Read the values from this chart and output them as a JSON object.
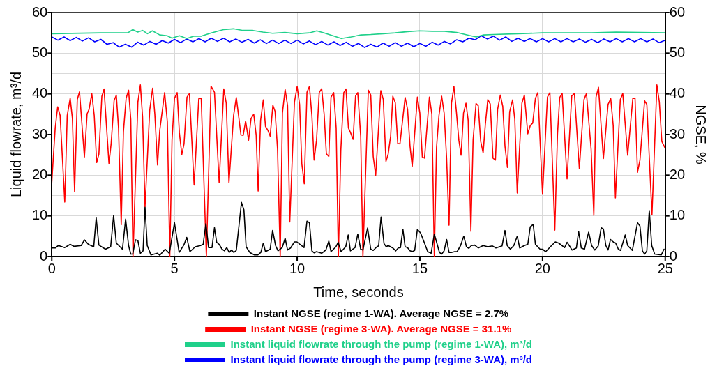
{
  "chart_data": {
    "type": "line",
    "xlabel": "Time, seconds",
    "ylabel": "Liquid flowrate, m³/d",
    "y2label": "NGSE, %",
    "xlim": [
      0,
      25
    ],
    "xticks": [
      0,
      5,
      10,
      15,
      20,
      25
    ],
    "ylim": [
      0,
      60
    ],
    "yticks": [
      0,
      {
        "value": 5,
        "label": null
      },
      10,
      {
        "value": 15,
        "label": null
      },
      20,
      {
        "value": 25,
        "label": null
      },
      30,
      {
        "value": 35,
        "label": null
      },
      40,
      {
        "value": 45,
        "label": null
      },
      50,
      {
        "value": 55,
        "label": null
      },
      60
    ],
    "y2lim": [
      0,
      60
    ],
    "y2ticks": [
      0,
      10,
      20,
      30,
      40,
      50,
      60
    ],
    "grid": true,
    "legend": "bottom",
    "marker": "none",
    "line_style": "solid",
    "series": [
      {
        "name": "Instant NGSE (regime 1-WA). Average NGSE = 2.7%",
        "color": "#000000",
        "x": [
          0,
          0.14,
          0.27,
          0.53,
          0.75,
          0.91,
          1.2,
          1.33,
          1.49,
          1.71,
          1.81,
          1.92,
          2.19,
          2.4,
          2.52,
          2.63,
          2.88,
          3.01,
          3.13,
          3.22,
          3.3,
          3.41,
          3.51,
          3.61,
          3.72,
          3.8,
          3.89,
          4.04,
          4.31,
          4.4,
          4.62,
          4.79,
          5.0,
          5.19,
          5.38,
          5.5,
          5.63,
          5.85,
          6.06,
          6.17,
          6.28,
          6.39,
          6.53,
          6.63,
          6.72,
          6.82,
          6.94,
          7.04,
          7.13,
          7.23,
          7.33,
          7.42,
          7.52,
          7.73,
          7.83,
          7.92,
          8.07,
          8.26,
          8.4,
          8.52,
          8.62,
          8.71,
          8.9,
          9.0,
          9.12,
          9.22,
          9.39,
          9.51,
          9.61,
          9.73,
          9.89,
          9.99,
          10.28,
          10.4,
          10.5,
          10.6,
          10.69,
          10.79,
          11.0,
          11.17,
          11.29,
          11.38,
          11.58,
          11.67,
          11.79,
          11.98,
          12.08,
          12.17,
          12.36,
          12.47,
          12.59,
          12.68,
          12.87,
          13.0,
          13.1,
          13.25,
          13.32,
          13.42,
          13.54,
          13.63,
          13.71,
          13.9,
          14.02,
          14.12,
          14.21,
          14.31,
          14.4,
          14.5,
          14.6,
          14.69,
          14.79,
          14.9,
          15.03,
          15.19,
          15.32,
          15.46,
          15.59,
          15.67,
          15.8,
          15.89,
          15.99,
          16.09,
          16.19,
          16.28,
          16.42,
          16.52,
          16.66,
          16.79,
          16.9,
          17.0,
          17.1,
          17.24,
          17.38,
          17.58,
          17.77,
          17.96,
          18.1,
          18.35,
          18.47,
          18.56,
          18.69,
          18.83,
          18.97,
          19.07,
          19.26,
          19.4,
          19.5,
          19.62,
          19.71,
          19.9,
          20.0,
          20.13,
          20.32,
          20.52,
          20.66,
          20.9,
          21.0,
          21.09,
          21.2,
          21.38,
          21.47,
          21.58,
          21.71,
          21.88,
          22.0,
          22.13,
          22.27,
          22.39,
          22.48,
          22.58,
          22.67,
          22.77,
          22.88,
          22.98,
          23.09,
          23.18,
          23.37,
          23.47,
          23.66,
          23.87,
          23.97,
          24.07,
          24.16,
          24.25,
          24.35,
          24.45,
          24.57,
          24.84,
          24.95
        ],
        "values": [
          2.1,
          2.1,
          2.7,
          2.2,
          3.0,
          2.5,
          2.7,
          4.1,
          3.0,
          2.4,
          9.5,
          2.8,
          1.8,
          2.4,
          10.1,
          3.3,
          1.8,
          9.2,
          2.7,
          0.6,
          0.6,
          4.1,
          3.9,
          0.8,
          1.4,
          12.1,
          2.7,
          0.4,
          0.8,
          0.3,
          1.8,
          0.8,
          8.3,
          1.0,
          2.8,
          4.7,
          1.2,
          2.4,
          2.7,
          3.0,
          8.1,
          2.2,
          2.2,
          7.1,
          3.5,
          3.0,
          1.8,
          1.4,
          2.2,
          1.0,
          1.6,
          1.0,
          1.5,
          13.3,
          11.5,
          2.4,
          1.0,
          0.4,
          0.4,
          1.0,
          3.3,
          1.2,
          1.8,
          6.4,
          2.7,
          1.4,
          2.2,
          4.5,
          1.6,
          2.1,
          3.6,
          3.6,
          2.2,
          8.7,
          8.3,
          1.4,
          0.9,
          1.2,
          0.8,
          1.6,
          3.8,
          1.2,
          2.4,
          3.5,
          1.2,
          2.4,
          5.3,
          1.4,
          2.2,
          5.5,
          1.8,
          1.6,
          7.0,
          1.8,
          1.5,
          2.4,
          2.6,
          9.7,
          3.2,
          2.4,
          2.7,
          2.1,
          1.4,
          2.1,
          2.2,
          6.7,
          2.4,
          2.2,
          1.4,
          1.2,
          1.5,
          6.7,
          5.8,
          3.3,
          1.2,
          0.8,
          5.5,
          3.8,
          1.0,
          0.6,
          1.4,
          4.2,
          1.0,
          1.0,
          1.2,
          1.2,
          2.7,
          5.0,
          2.4,
          2.0,
          2.7,
          2.8,
          2.1,
          2.7,
          2.4,
          2.6,
          2.1,
          2.6,
          6.4,
          2.7,
          1.8,
          2.7,
          5.0,
          2.1,
          2.7,
          3.0,
          7.3,
          7.9,
          3.0,
          1.8,
          1.8,
          1.2,
          2.4,
          3.6,
          3.3,
          2.2,
          3.5,
          2.7,
          1.6,
          2.1,
          6.2,
          2.1,
          1.8,
          6.0,
          2.7,
          1.6,
          2.6,
          7.1,
          6.8,
          2.7,
          1.6,
          4.2,
          3.6,
          3.3,
          1.8,
          1.5,
          5.3,
          2.7,
          1.5,
          8.3,
          7.5,
          1.4,
          0.6,
          1.4,
          11.3,
          2.7,
          0.6,
          0.4,
          1.8
        ]
      },
      {
        "name": "Instant NGSE (regime 3-WA). Average NGSE = 31.1%",
        "color": "#ff0000",
        "x": [
          0,
          0.14,
          0.24,
          0.34,
          0.53,
          0.63,
          0.75,
          0.84,
          0.93,
          1.04,
          1.13,
          1.33,
          1.44,
          1.52,
          1.63,
          1.73,
          1.83,
          1.92,
          2.04,
          2.13,
          2.33,
          2.42,
          2.54,
          2.63,
          2.72,
          2.83,
          2.92,
          3.03,
          3.13,
          3.22,
          3.31,
          3.51,
          3.61,
          3.7,
          3.8,
          3.99,
          4.11,
          4.2,
          4.31,
          4.4,
          4.6,
          4.71,
          4.81,
          4.9,
          5.0,
          5.11,
          5.2,
          5.3,
          5.39,
          5.51,
          5.61,
          5.8,
          5.99,
          6.09,
          6.3,
          6.49,
          6.63,
          6.82,
          7.01,
          7.11,
          7.22,
          7.41,
          7.52,
          7.71,
          7.8,
          7.9,
          8.02,
          8.12,
          8.23,
          8.33,
          8.41,
          8.51,
          8.62,
          8.71,
          8.81,
          8.9,
          9.01,
          9.1,
          9.2,
          9.31,
          9.4,
          9.51,
          9.61,
          9.7,
          9.89,
          10.0,
          10.1,
          10.19,
          10.29,
          10.4,
          10.5,
          10.6,
          10.69,
          10.79,
          10.9,
          11.0,
          11.1,
          11.19,
          11.29,
          11.38,
          11.49,
          11.59,
          11.68,
          11.78,
          11.9,
          11.99,
          12.09,
          12.18,
          12.28,
          12.38,
          12.47,
          12.59,
          12.68,
          12.9,
          13.0,
          13.1,
          13.2,
          13.41,
          13.51,
          13.62,
          13.71,
          13.81,
          13.9,
          14.0,
          14.1,
          14.19,
          14.4,
          14.5,
          14.6,
          14.69,
          14.9,
          15.0,
          15.1,
          15.19,
          15.39,
          15.49,
          15.59,
          15.68,
          15.78,
          15.89,
          15.99,
          16.09,
          16.19,
          16.29,
          16.39,
          16.49,
          16.59,
          16.68,
          16.78,
          16.88,
          16.97,
          17.08,
          17.17,
          17.29,
          17.38,
          17.48,
          17.58,
          17.67,
          17.77,
          17.87,
          17.98,
          18.08,
          18.17,
          18.28,
          18.38,
          18.47,
          18.57,
          18.66,
          18.78,
          18.87,
          18.97,
          19.16,
          19.26,
          19.4,
          19.5,
          19.6,
          19.71,
          19.81,
          20.0,
          20.2,
          20.3,
          20.5,
          20.61,
          20.7,
          20.8,
          21.0,
          21.19,
          21.3,
          21.5,
          21.69,
          21.79,
          21.98,
          22.09,
          22.18,
          22.28,
          22.48,
          22.67,
          22.78,
          22.88,
          22.97,
          23.17,
          23.27,
          23.47,
          23.68,
          23.77,
          23.87,
          23.97,
          24.16,
          24.25,
          24.46,
          24.66,
          24.76,
          24.86,
          25.0
        ],
        "values": [
          18.2,
          31.6,
          36.8,
          34.7,
          13.4,
          34.7,
          38.9,
          34.0,
          16.0,
          38.6,
          40.5,
          24.5,
          35.1,
          36.2,
          40.1,
          34.7,
          23.1,
          25.2,
          39.4,
          41.2,
          22.9,
          27.8,
          38.3,
          39.7,
          31.6,
          7.8,
          30.7,
          38.9,
          40.9,
          33.7,
          0,
          38.0,
          42.2,
          34.4,
          12.2,
          35.9,
          41.4,
          35.0,
          22.5,
          31.0,
          40.3,
          33.1,
          0,
          28.6,
          38.9,
          40.3,
          30.4,
          25.1,
          27.7,
          39.2,
          40.1,
          17.6,
          38.8,
          38.9,
          0,
          41.9,
          40.4,
          18.2,
          41.2,
          37.7,
          18.1,
          34.7,
          39.1,
          29.9,
          29.8,
          33.3,
          28.6,
          33.9,
          35.0,
          29.8,
          16.1,
          33.5,
          38.5,
          32.0,
          31.0,
          29.6,
          37.2,
          35.7,
          26.4,
          0,
          35.3,
          41.1,
          37.1,
          8.5,
          38.0,
          41.8,
          37.4,
          22.8,
          17.9,
          40.4,
          41.8,
          34.7,
          23.7,
          28.6,
          40.3,
          41.3,
          35.0,
          25.3,
          24.6,
          39.2,
          40.3,
          31.6,
          0,
          26.1,
          40.3,
          41.2,
          31.6,
          30.4,
          28.8,
          39.5,
          40.3,
          29.5,
          0,
          40.9,
          39.7,
          24.6,
          20.0,
          40.8,
          38.6,
          23.4,
          25.2,
          29.6,
          39.4,
          37.8,
          27.8,
          27.7,
          39.1,
          36.2,
          27.1,
          22.2,
          39.2,
          35.3,
          24.5,
          24.2,
          39.2,
          35.0,
          0,
          26.8,
          34.7,
          39.4,
          35.3,
          24.3,
          7.7,
          37.7,
          41.8,
          35.6,
          28.6,
          24.9,
          35.3,
          37.7,
          33.5,
          6.2,
          28.6,
          37.6,
          37.1,
          28.3,
          25.5,
          32.5,
          38.6,
          37.5,
          24.2,
          23.7,
          36.2,
          39.7,
          36.9,
          27.1,
          21.9,
          35.6,
          38.5,
          33.7,
          15.6,
          37.7,
          39.7,
          30.2,
          32.2,
          32.8,
          38.9,
          40.3,
          15.3,
          39.2,
          40.3,
          6.5,
          30.1,
          39.1,
          40.1,
          19.1,
          39.5,
          40.1,
          21.6,
          38.6,
          40.1,
          26.4,
          10.1,
          39.2,
          41.6,
          24.1,
          37.4,
          38.8,
          32.2,
          14.4,
          38.6,
          40.1,
          24.9,
          38.9,
          38.9,
          20.7,
          23.7,
          38.3,
          37.4,
          10.3,
          42.2,
          38.0,
          28.3,
          26.6
        ]
      },
      {
        "name": "Instant liquid flowrate through the pump (regime 1-WA), m³/d",
        "color": "#1fd08a",
        "x": [
          0,
          2,
          3.1,
          3.3,
          3.5,
          3.7,
          3.9,
          4.1,
          4.4,
          4.7,
          4.9,
          5.2,
          5.5,
          5.8,
          6.1,
          6.5,
          7.0,
          7.4,
          7.8,
          8.2,
          8.6,
          9,
          9.5,
          10,
          10.5,
          10.8,
          11.1,
          11.5,
          11.8,
          12.2,
          12.6,
          13,
          13.5,
          14,
          14.5,
          15,
          15.5,
          16,
          16.5,
          17,
          17.3,
          17.6,
          18,
          19,
          20,
          21,
          22,
          23,
          24,
          25
        ],
        "values": [
          54.8,
          55.0,
          55.0,
          55.8,
          55.2,
          55.6,
          54.8,
          55.5,
          54.5,
          54.3,
          53.7,
          54.3,
          53.6,
          54.2,
          54.2,
          55.0,
          55.8,
          56.0,
          55.6,
          55.6,
          55.2,
          54.9,
          55.1,
          54.8,
          55.0,
          55.5,
          55.0,
          54.2,
          53.6,
          54.0,
          54.5,
          54.6,
          54.8,
          55.0,
          55.3,
          55.5,
          55.4,
          55.4,
          55.1,
          54.4,
          54.0,
          54.5,
          54.6,
          54.8,
          55.0,
          55.0,
          55.0,
          55.2,
          55.1,
          55.0
        ]
      },
      {
        "name": "Instant liquid flowrate through the pump (regime 3-WA), m³/d",
        "color": "#0000ff",
        "x": [
          0,
          0.25,
          0.5,
          0.75,
          1,
          1.25,
          1.5,
          1.75,
          2,
          2.25,
          2.5,
          2.75,
          3,
          3.25,
          3.5,
          3.75,
          4,
          4.25,
          4.5,
          4.75,
          5,
          5.25,
          5.5,
          5.75,
          6,
          6.25,
          6.5,
          6.75,
          7,
          7.25,
          7.5,
          7.75,
          8,
          8.25,
          8.5,
          8.75,
          9,
          9.25,
          9.5,
          9.75,
          10,
          10.25,
          10.5,
          10.75,
          11,
          11.25,
          11.5,
          11.75,
          12,
          12.25,
          12.5,
          12.75,
          13,
          13.25,
          13.5,
          13.75,
          14,
          14.25,
          14.5,
          14.75,
          15,
          15.25,
          15.5,
          15.75,
          16,
          16.25,
          16.5,
          16.75,
          17,
          17.25,
          17.5,
          17.75,
          18,
          18.25,
          18.5,
          18.75,
          19,
          19.25,
          19.5,
          19.75,
          20,
          20.25,
          20.5,
          20.75,
          21,
          21.25,
          21.5,
          21.75,
          22,
          22.25,
          22.5,
          22.75,
          23,
          23.25,
          23.5,
          23.75,
          24,
          24.25,
          24.5,
          24.75,
          25
        ],
        "values": [
          54.0,
          53.2,
          54.0,
          53.1,
          53.9,
          53.0,
          53.8,
          52.8,
          53.4,
          52.2,
          52.6,
          51.5,
          52.2,
          51.5,
          52.7,
          52.0,
          52.9,
          52.2,
          53.1,
          52.5,
          53.4,
          52.6,
          53.5,
          52.8,
          53.6,
          52.8,
          53.7,
          52.9,
          53.7,
          52.8,
          53.5,
          52.7,
          53.4,
          52.5,
          53.3,
          52.4,
          53.2,
          52.4,
          53.2,
          52.4,
          53.2,
          52.3,
          53.0,
          52.1,
          52.9,
          52.0,
          52.8,
          51.9,
          52.7,
          51.7,
          52.4,
          51.4,
          52.2,
          51.5,
          52.5,
          51.7,
          52.6,
          51.7,
          52.5,
          51.6,
          52.4,
          51.7,
          52.7,
          52.0,
          52.9,
          52.3,
          53.3,
          52.8,
          53.7,
          53.3,
          54.3,
          53.5,
          54.2,
          53.2,
          54.0,
          52.9,
          53.7,
          52.9,
          53.6,
          52.8,
          53.6,
          52.8,
          53.6,
          52.8,
          53.6,
          52.8,
          53.5,
          52.7,
          53.4,
          52.6,
          53.5,
          52.8,
          53.6,
          52.8,
          53.6,
          52.8,
          53.6,
          52.8,
          53.5,
          52.6,
          53.2
        ]
      }
    ]
  }
}
